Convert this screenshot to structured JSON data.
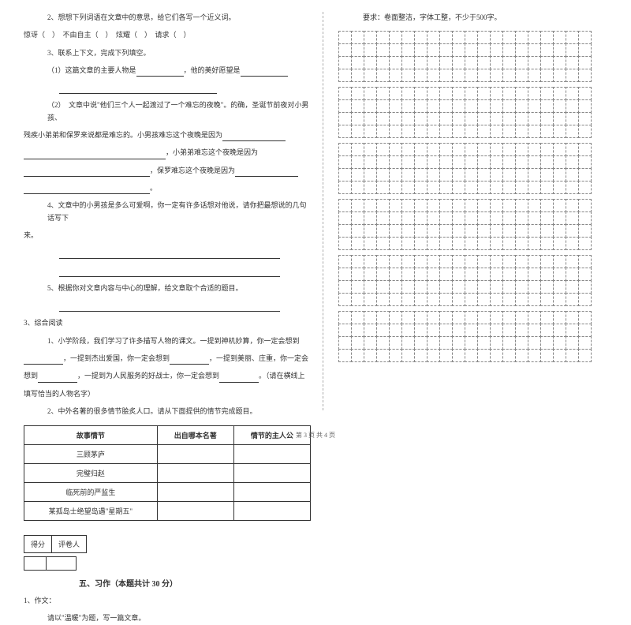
{
  "left": {
    "q2": "2、想想下列词语在文章中的意思，给它们各写一个近义词。",
    "q2_words": "惊讶（　）　不由自主（　）　炫耀（　）　请求（　）",
    "q3": "3、联系上下文，完成下列填空。",
    "q3_1": "（1）这篇文章的主要人物是",
    "q3_1b": "，他的美好愿望是",
    "q3_2a": "（2）　文章中说\"他们三个人一起渡过了一个难忘的夜晚\"。的确，圣诞节前夜对小男孩、",
    "q3_2b": "残疾小弟弟和保罗来说都是难忘的。小男孩难忘这个夜晚是因为",
    "q3_2c": "，小弟弟难忘这个夜晚是因为",
    "q3_2d": "，保罗难忘这个夜晚是因为",
    "q3_2e": "。",
    "q4a": "4、文章中的小男孩是多么可爱啊，你一定有许多话想对他说，请你把最想说的几句话写下",
    "q4b": "来。",
    "q5": "5、根据你对文章内容与中心的理解，给文章取个合适的题目。",
    "sec3": "3、综合阅读",
    "sec3_1a": "1、小学阶段，我们学习了许多描写人物的课文。一提到神机妙算，你一定会想到",
    "sec3_1b": "，一提到杰出爱国，你一定会想到",
    "sec3_1c": "，一提到美丽、庄重，你一定会",
    "sec3_1d": "想到",
    "sec3_1e": "，一提到为人民服务的好战士，你一定会想到",
    "sec3_1f": "。（请在横线上",
    "sec3_1g": "填写恰当的人物名字）",
    "sec3_2": "2、中外名著的很多情节脍炙人口。请从下面提供的情节完成题目。",
    "table": {
      "headers": [
        "故事情节",
        "出自哪本名著",
        "情节的主人公"
      ],
      "rows": [
        [
          "三顾茅庐",
          "",
          ""
        ],
        [
          "完璧归赵",
          "",
          ""
        ],
        [
          "临死前的严监生",
          "",
          ""
        ],
        [
          "某孤岛士绝望岛遇\"星期五\"",
          "",
          ""
        ]
      ]
    },
    "score_labels": [
      "得分",
      "评卷人"
    ],
    "section5": "五、习作（本题共计 30 分）",
    "essay1": "1、作文：",
    "essay1b": "请以\"温暖\"为题，写一篇文章。"
  },
  "right": {
    "requirement": "要求：卷面整洁，字体工整，不少于500字。"
  },
  "footer": "第 3 页 共 4 页",
  "grid": {
    "cols": 20,
    "rows_per_block": 4,
    "blocks": 6
  }
}
